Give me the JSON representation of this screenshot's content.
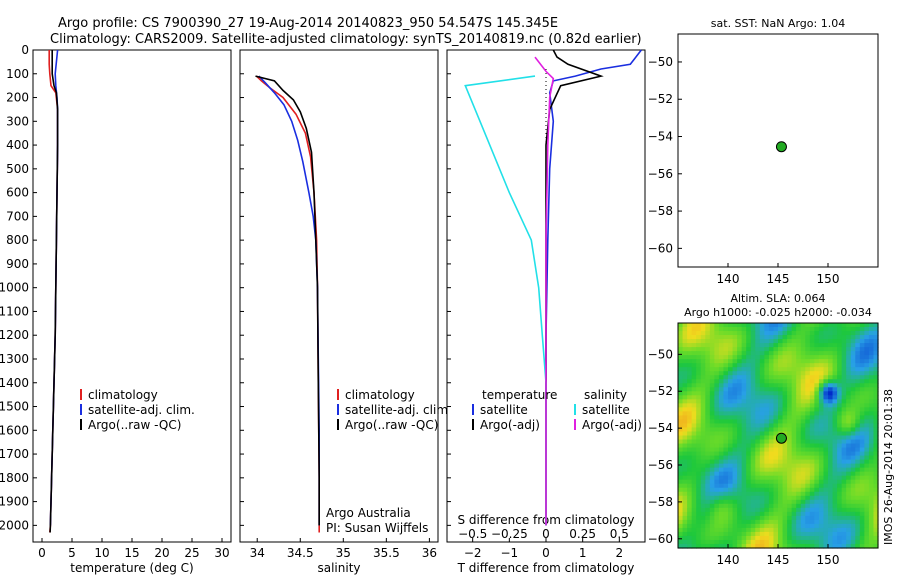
{
  "figure": {
    "title_line1": "Argo profile: CS 7900390_27 19-Aug-2014 20140823_950 54.547S 145.345E",
    "title_line2": "Climatology: CARS2009. Satellite-adjusted climatology: synTS_20140819.nc (0.82d earlier)",
    "side_stamp": "IMOS 26-Aug-2014 20:01:38",
    "credit_line1": "Argo Australia",
    "credit_line2": "PI: Susan Wijffels"
  },
  "colors": {
    "climatology": "#e02020",
    "satellite": "#1a2ee0",
    "argo": "#000000",
    "sal_satellite": "#22e0e8",
    "sal_argo": "#e020e0",
    "float_marker": "#22aa22"
  },
  "chart_data": [
    {
      "id": "temperature",
      "type": "line",
      "xlabel": "temperature (deg C)",
      "ylabel": "",
      "xlim": [
        -1.5,
        31.5
      ],
      "ylim": [
        2070,
        0
      ],
      "xticks": [
        0,
        5,
        10,
        15,
        20,
        25,
        30
      ],
      "yticks": [
        0,
        100,
        200,
        300,
        400,
        500,
        600,
        700,
        800,
        900,
        1000,
        1100,
        1200,
        1300,
        1400,
        1500,
        1600,
        1700,
        1800,
        1900,
        2000
      ],
      "legend": [
        "climatology",
        "satellite-adj. clim.",
        "Argo(..raw -QC)"
      ],
      "series": [
        {
          "name": "climatology",
          "x": [
            1.2,
            1.2,
            1.3,
            1.5,
            2.3,
            2.6,
            2.6,
            2.5,
            2.4,
            2.3,
            2.2,
            2.1,
            2.0,
            1.9,
            1.8,
            1.7,
            1.6,
            1.5,
            1.4,
            1.3
          ],
          "y": [
            0,
            60,
            100,
            150,
            180,
            250,
            400,
            600,
            800,
            1000,
            1200,
            1300,
            1400,
            1500,
            1600,
            1700,
            1800,
            1900,
            2000,
            2030
          ]
        },
        {
          "name": "satellite-adj. clim.",
          "x": [
            2.6,
            2.4,
            2.2,
            2.3,
            2.5,
            2.6,
            2.6,
            2.5,
            2.4,
            2.3,
            2.2,
            2.1,
            2.0,
            1.9,
            1.8,
            1.7,
            1.6,
            1.5,
            1.4
          ],
          "y": [
            0,
            50,
            100,
            150,
            200,
            250,
            400,
            600,
            800,
            1000,
            1200,
            1300,
            1400,
            1500,
            1600,
            1700,
            1800,
            1900,
            2000
          ]
        },
        {
          "name": "Argo(..raw -QC)",
          "x": [
            1.7,
            1.7,
            1.7,
            2.0,
            2.4,
            2.6,
            2.6,
            2.5,
            2.4,
            2.3,
            2.2,
            2.1,
            2.0,
            1.9,
            1.8,
            1.7,
            1.6,
            1.5,
            1.4,
            1.35
          ],
          "y": [
            0,
            60,
            100,
            150,
            180,
            250,
            400,
            600,
            800,
            1000,
            1200,
            1300,
            1400,
            1500,
            1600,
            1700,
            1800,
            1900,
            2000,
            2030
          ]
        }
      ]
    },
    {
      "id": "salinity",
      "type": "line",
      "xlabel": "salinity",
      "xlim": [
        33.8,
        36.1
      ],
      "ylim": [
        2070,
        0
      ],
      "xticks": [
        34,
        34.5,
        35,
        35.5,
        36
      ],
      "legend": [
        "climatology",
        "satellite-adj. clim.",
        "Argo(..raw -QC)"
      ],
      "series": [
        {
          "name": "climatology",
          "x": [
            33.99,
            34.05,
            34.15,
            34.3,
            34.45,
            34.56,
            34.62,
            34.66,
            34.69,
            34.7,
            34.71,
            34.72,
            34.72
          ],
          "y": [
            110,
            130,
            160,
            200,
            270,
            350,
            450,
            600,
            800,
            1000,
            1400,
            1800,
            2030
          ]
        },
        {
          "name": "satellite-adj. clim.",
          "x": [
            34.02,
            34.1,
            34.2,
            34.31,
            34.4,
            34.47,
            34.53,
            34.6,
            34.65,
            34.68,
            34.7,
            34.71,
            34.72,
            34.72
          ],
          "y": [
            110,
            140,
            180,
            230,
            300,
            380,
            470,
            600,
            700,
            800,
            1000,
            1300,
            1600,
            2000
          ]
        },
        {
          "name": "Argo(..raw -QC)",
          "x": [
            33.98,
            34.2,
            34.3,
            34.42,
            34.5,
            34.57,
            34.63,
            34.66,
            34.68,
            34.7,
            34.71,
            34.72,
            34.72
          ],
          "y": [
            110,
            130,
            170,
            210,
            260,
            330,
            430,
            600,
            800,
            1000,
            1400,
            1800,
            2000
          ]
        }
      ]
    },
    {
      "id": "difference",
      "type": "line",
      "xlabel": "T difference from climatology",
      "xlabel_top": "S difference from climatology",
      "xlim": [
        -2.7,
        2.7
      ],
      "ylim": [
        2070,
        0
      ],
      "xticks": [
        -2,
        -1,
        0,
        1,
        2
      ],
      "xticks_top": [
        -0.5,
        -0.25,
        0,
        0.25,
        0.5
      ],
      "legend_headers": [
        "temperature",
        "salinity"
      ],
      "legend": [
        "satellite",
        "Argo(-adj)",
        "satellite",
        "Argo(-adj)"
      ],
      "series": [
        {
          "name": "temperature satellite",
          "x": [
            2.6,
            2.3,
            1.5,
            0.8,
            0.2,
            0.1,
            0.2,
            0.1,
            0.05,
            0.0,
            0.0,
            0.0,
            0.0
          ],
          "y": [
            0,
            60,
            80,
            110,
            130,
            180,
            300,
            500,
            800,
            1200,
            1500,
            1800,
            2000
          ]
        },
        {
          "name": "temperature Argo(-adj)",
          "x": [
            0.2,
            0.3,
            0.6,
            1.5,
            0.4,
            0.1,
            0.0,
            0.0,
            0.0,
            0.0,
            0.0,
            0.0
          ],
          "y": [
            0,
            30,
            60,
            110,
            150,
            250,
            400,
            600,
            900,
            1300,
            1700,
            2000
          ]
        },
        {
          "name": "salinity satellite",
          "x": [
            -0.3,
            -2.2,
            -1.8,
            -1.0,
            -0.4,
            -0.2,
            -0.1,
            0.0,
            0.0,
            0.0
          ],
          "y": [
            110,
            150,
            300,
            600,
            800,
            1000,
            1200,
            1400,
            1700,
            2000
          ]
        },
        {
          "name": "salinity Argo(-adj)",
          "x": [
            -0.3,
            0.0,
            0.2,
            0.1,
            0.05,
            0.0,
            0.0,
            0.0
          ],
          "y": [
            30,
            90,
            120,
            200,
            400,
            800,
            1400,
            2000
          ]
        }
      ]
    },
    {
      "id": "sst_map",
      "type": "scatter",
      "title": "sat. SST: NaN Argo: 1.04",
      "xlim": [
        135,
        155
      ],
      "ylim": [
        -61,
        -48.5
      ],
      "xticks": [
        140,
        145,
        150
      ],
      "yticks": [
        -50,
        -52,
        -54,
        -56,
        -58,
        -60
      ],
      "points": [
        {
          "x": 145.345,
          "y": -54.547
        }
      ]
    },
    {
      "id": "sla_map",
      "type": "heatmap",
      "title_line1": "Altim. SLA: 0.064",
      "title_line2": "Argo h1000: -0.025 h2000: -0.034",
      "xlim": [
        135,
        155
      ],
      "ylim": [
        -60.5,
        -48.3
      ],
      "xticks": [
        140,
        145,
        150
      ],
      "yticks": [
        -50,
        -52,
        -54,
        -56,
        -58,
        -60
      ],
      "points": [
        {
          "x": 145.345,
          "y": -54.547
        }
      ]
    }
  ]
}
